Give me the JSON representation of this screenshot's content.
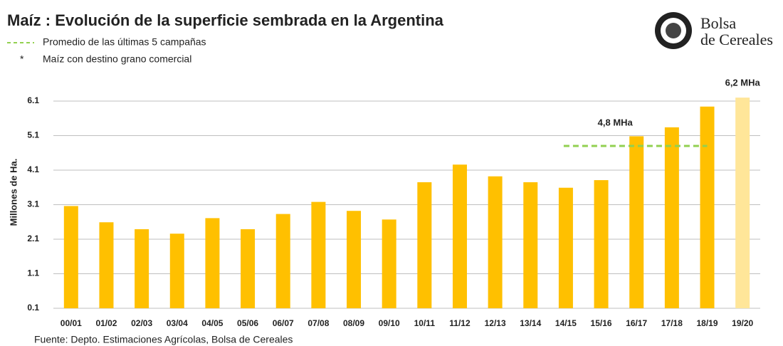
{
  "chart_data": {
    "type": "bar",
    "title": "Maíz : Evolución de la superficie sembrada en la Argentina",
    "note_marker": "*",
    "note": "Maíz con destino grano comercial",
    "y_label": "Millones de Ha.",
    "source": "Fuente: Depto. Estimaciones Agrícolas, Bolsa de Cereales",
    "logo_text": [
      "Bolsa",
      "de Cereales"
    ],
    "categories": [
      "00/01",
      "01/02",
      "02/03",
      "03/04",
      "04/05",
      "05/06",
      "06/07",
      "07/08",
      "08/09",
      "09/10",
      "10/11",
      "11/12",
      "12/13",
      "13/14",
      "14/15",
      "15/16",
      "16/17",
      "17/18",
      "18/19",
      "19/20"
    ],
    "values": [
      3.06,
      2.59,
      2.39,
      2.26,
      2.71,
      2.39,
      2.83,
      3.18,
      2.92,
      2.67,
      3.75,
      4.26,
      3.92,
      3.75,
      3.59,
      3.81,
      5.08,
      5.34,
      5.94,
      6.2
    ],
    "value_labels": [
      null,
      null,
      null,
      null,
      null,
      null,
      null,
      null,
      null,
      null,
      null,
      null,
      null,
      null,
      null,
      null,
      null,
      null,
      null,
      "6,2 MHa"
    ],
    "colors": [
      "#ffc000",
      "#ffc000",
      "#ffc000",
      "#ffc000",
      "#ffc000",
      "#ffc000",
      "#ffc000",
      "#ffc000",
      "#ffc000",
      "#ffc000",
      "#ffc000",
      "#ffc000",
      "#ffc000",
      "#ffc000",
      "#ffc000",
      "#ffc000",
      "#ffc000",
      "#ffc000",
      "#ffc000",
      "#ffe699"
    ],
    "average": {
      "name": "Promedio de las últimas 5 campañas",
      "value": 4.8,
      "label": "4,8 MHa",
      "color": "#92d050",
      "from": 14,
      "to": 18
    },
    "ylim": [
      0.1,
      6.8
    ],
    "yticks": [
      0.1,
      1.1,
      2.1,
      3.1,
      4.1,
      5.1,
      6.1
    ],
    "grid": true
  }
}
